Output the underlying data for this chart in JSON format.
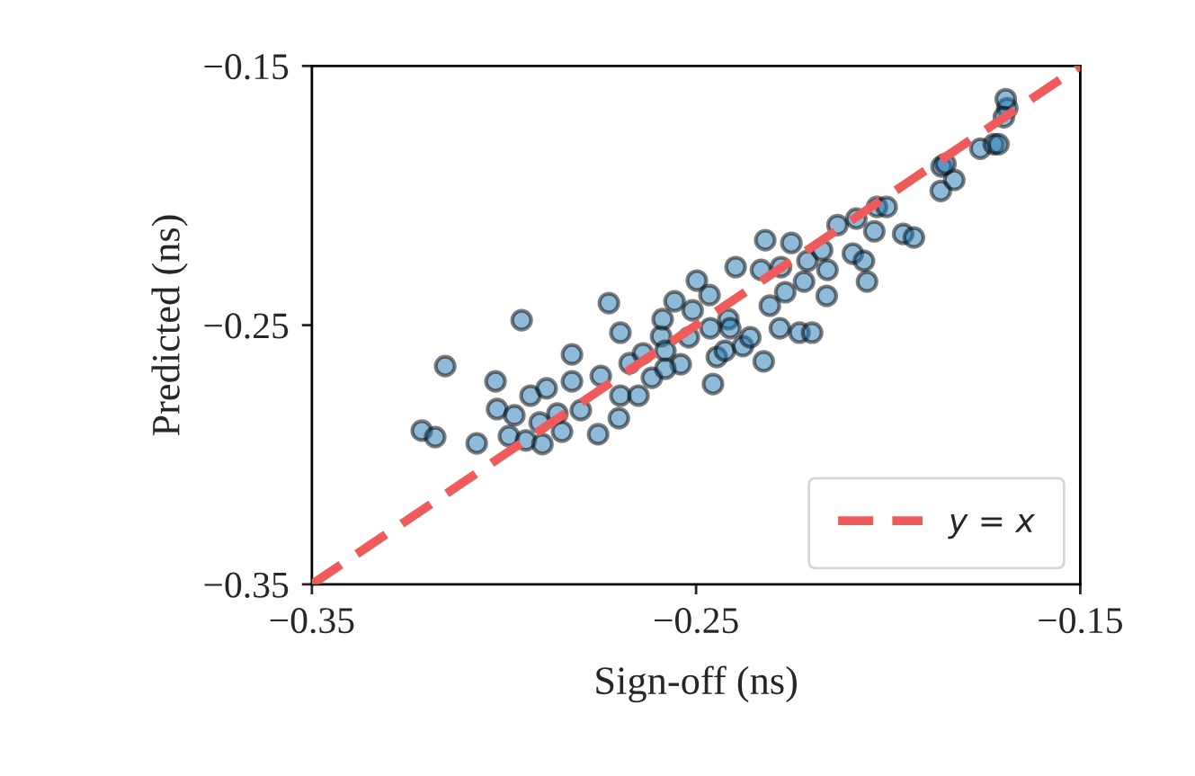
{
  "chart_data": {
    "type": "scatter",
    "xlabel": "Sign-off (ns)",
    "ylabel": "Predicted (ns)",
    "xlim": [
      -0.35,
      -0.15
    ],
    "ylim": [
      -0.35,
      -0.15
    ],
    "xticks": [
      {
        "value": -0.35,
        "label": "−0.35"
      },
      {
        "value": -0.25,
        "label": "−0.25"
      },
      {
        "value": -0.15,
        "label": "−0.15"
      }
    ],
    "yticks": [
      {
        "value": -0.35,
        "label": "−0.35"
      },
      {
        "value": -0.25,
        "label": "−0.25"
      },
      {
        "value": -0.15,
        "label": "−0.15"
      }
    ],
    "grid": false,
    "legend": "bottom right",
    "marker": "circle",
    "series": [
      {
        "color": "#1f77b4",
        "x": [
          -0.3214,
          -0.3179,
          -0.3153,
          -0.3071,
          -0.3022,
          -0.2954,
          -0.3018,
          -0.2987,
          -0.2973,
          -0.2931,
          -0.2907,
          -0.2889,
          -0.2943,
          -0.2861,
          -0.2849,
          -0.2823,
          -0.28,
          -0.2755,
          -0.2823,
          -0.2748,
          -0.2697,
          -0.2727,
          -0.2701,
          -0.2673,
          -0.2697,
          -0.265,
          -0.2638,
          -0.2615,
          -0.2591,
          -0.2587,
          -0.258,
          -0.254,
          -0.2519,
          -0.2509,
          -0.2556,
          -0.2498,
          -0.2456,
          -0.2446,
          -0.2465,
          -0.2425,
          -0.2416,
          -0.2397,
          -0.2378,
          -0.2359,
          -0.2324,
          -0.2331,
          -0.2308,
          -0.232,
          -0.2282,
          -0.2252,
          -0.2268,
          -0.2219,
          -0.2231,
          -0.2198,
          -0.221,
          -0.2172,
          -0.216,
          -0.2158,
          -0.2132,
          -0.2092,
          -0.2063,
          -0.2055,
          -0.2083,
          -0.2029,
          -0.2036,
          -0.2004,
          -0.1961,
          -0.1933,
          -0.1863,
          -0.1861,
          -0.1828,
          -0.1851,
          -0.176,
          -0.1725,
          -0.1713,
          -0.169,
          -0.1694,
          -0.1699,
          -0.29,
          -0.2411,
          -0.2279,
          -0.2463,
          -0.258
        ],
        "values": [
          -0.2907,
          -0.2932,
          -0.2658,
          -0.2956,
          -0.2717,
          -0.2481,
          -0.2824,
          -0.2928,
          -0.2848,
          -0.2772,
          -0.2876,
          -0.2744,
          -0.2945,
          -0.2841,
          -0.2911,
          -0.2717,
          -0.2828,
          -0.2921,
          -0.2613,
          -0.2696,
          -0.2529,
          -0.2415,
          -0.2859,
          -0.2647,
          -0.2772,
          -0.2772,
          -0.2609,
          -0.2703,
          -0.2543,
          -0.2477,
          -0.2599,
          -0.2651,
          -0.2547,
          -0.2443,
          -0.2408,
          -0.2328,
          -0.2727,
          -0.2623,
          -0.2384,
          -0.2599,
          -0.2477,
          -0.2276,
          -0.2581,
          -0.2547,
          -0.264,
          -0.2287,
          -0.2425,
          -0.2172,
          -0.2512,
          -0.2183,
          -0.2373,
          -0.2332,
          -0.2529,
          -0.2529,
          -0.2252,
          -0.2211,
          -0.2387,
          -0.2287,
          -0.2114,
          -0.2224,
          -0.2252,
          -0.2332,
          -0.2089,
          -0.2044,
          -0.2138,
          -0.2044,
          -0.2148,
          -0.2162,
          -0.1982,
          -0.1888,
          -0.194,
          -0.1878,
          -0.1819,
          -0.1802,
          -0.1802,
          -0.1663,
          -0.1628,
          -0.1698,
          -0.2959,
          -0.2512,
          -0.2276,
          -0.2512,
          -0.2668
        ]
      },
      {
        "type": "line",
        "name": "y = x",
        "color": "#f05a5a",
        "line_style": "dashed",
        "marker": "none",
        "x": [
          -0.35,
          -0.15
        ],
        "values": [
          -0.35,
          -0.15
        ]
      }
    ]
  }
}
